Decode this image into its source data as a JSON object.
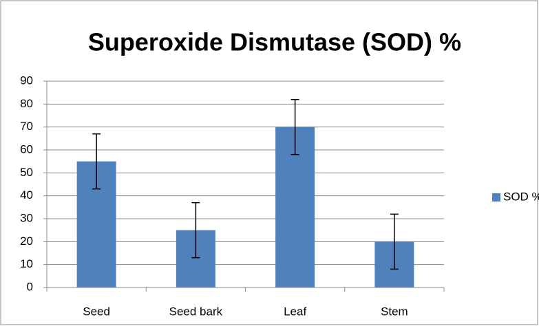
{
  "chart_data": {
    "type": "bar",
    "title": "Superoxide Dismutase (SOD) %",
    "categories": [
      "Seed",
      "Seed bark",
      "Leaf",
      "Stem"
    ],
    "series": [
      {
        "name": "SOD %",
        "color": "#4f81bd",
        "values": [
          55,
          25,
          70,
          20
        ],
        "errors": [
          12,
          12,
          12,
          12
        ]
      }
    ],
    "ylim": [
      0,
      90
    ],
    "yticks": [
      0,
      10,
      20,
      30,
      40,
      50,
      60,
      70,
      80,
      90
    ],
    "grid": true,
    "legend": "right"
  }
}
